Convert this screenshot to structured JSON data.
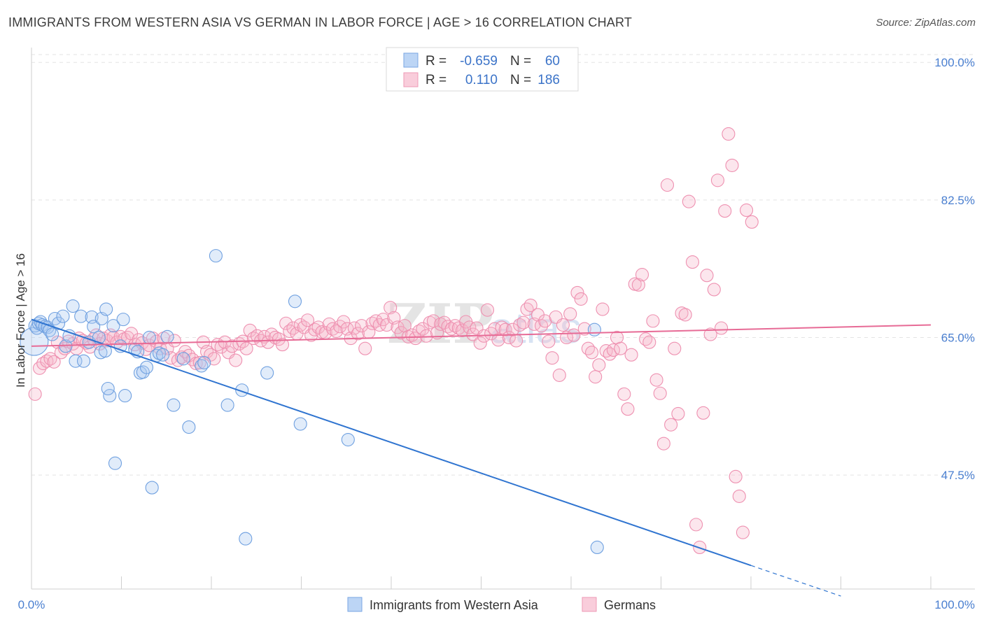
{
  "header": {
    "title": "IMMIGRANTS FROM WESTERN ASIA VS GERMAN IN LABOR FORCE | AGE > 16 CORRELATION CHART",
    "source": "Source: ZipAtlas.com"
  },
  "legend": {
    "rows": [
      {
        "r_label": "R =",
        "r_value": "-0.659",
        "n_label": "N =",
        "n_value": "60",
        "color": "#a8c8f0"
      },
      {
        "r_label": "R =",
        "r_value": "0.110",
        "n_label": "N =",
        "n_value": "186",
        "color": "#f5b8cc"
      }
    ]
  },
  "bottom_legend": {
    "series1": "Immigrants from Western Asia",
    "series2": "Germans"
  },
  "watermark": {
    "zip": "ZIP",
    "atlas": "atlas"
  },
  "colors": {
    "blue": "#6fa0e0",
    "blue_fill": "#a8c8f0",
    "blue_line": "#2f74d0",
    "pink": "#ee90b0",
    "pink_fill": "#f5b8cc",
    "pink_line": "#e76b96",
    "axis_label": "#4a7fd0"
  },
  "chart_data": {
    "type": "scatter",
    "title": "IMMIGRANTS FROM WESTERN ASIA VS GERMAN IN LABOR FORCE | AGE > 16 CORRELATION CHART",
    "xlabel": "",
    "ylabel": "In Labor Force | Age > 16",
    "xlim": [
      0,
      100
    ],
    "ylim": [
      33,
      101
    ],
    "x_tick_labels": [
      "0.0%",
      "100.0%"
    ],
    "y_ticks": [
      47.5,
      65.0,
      82.5,
      100.0
    ],
    "y_tick_labels": [
      "47.5%",
      "65.0%",
      "82.5%",
      "100.0%"
    ],
    "grid": true,
    "series": [
      {
        "name": "Immigrants from Western Asia",
        "trend": {
          "x0": 0,
          "y0": 67.3,
          "x1": 80,
          "y1": 36.0,
          "dash_to_x": 90,
          "dash_to_y": 32.1
        },
        "points": [
          [
            0.3,
            64.5
          ],
          [
            0.4,
            66.5
          ],
          [
            0.6,
            66.2
          ],
          [
            0.8,
            66.8
          ],
          [
            1.0,
            67.0
          ],
          [
            1.2,
            66.6
          ],
          [
            1.5,
            66.4
          ],
          [
            1.8,
            66.3
          ],
          [
            2.0,
            65.9
          ],
          [
            2.3,
            65.4
          ],
          [
            2.6,
            67.4
          ],
          [
            3.0,
            66.8
          ],
          [
            3.5,
            67.7
          ],
          [
            3.8,
            63.9
          ],
          [
            4.2,
            65.2
          ],
          [
            4.6,
            69.0
          ],
          [
            4.9,
            62.0
          ],
          [
            5.5,
            67.7
          ],
          [
            5.8,
            62.0
          ],
          [
            6.4,
            64.4
          ],
          [
            6.7,
            67.6
          ],
          [
            6.9,
            66.4
          ],
          [
            7.5,
            65.0
          ],
          [
            7.8,
            67.4
          ],
          [
            7.7,
            63.1
          ],
          [
            8.2,
            63.3
          ],
          [
            8.3,
            68.6
          ],
          [
            8.7,
            57.6
          ],
          [
            9.1,
            66.5
          ],
          [
            9.9,
            63.9
          ],
          [
            10.2,
            67.3
          ],
          [
            10.4,
            57.6
          ],
          [
            11.5,
            63.5
          ],
          [
            11.8,
            63.2
          ],
          [
            12.1,
            60.5
          ],
          [
            12.4,
            60.6
          ],
          [
            12.8,
            61.2
          ],
          [
            13.1,
            65.0
          ],
          [
            13.4,
            45.9
          ],
          [
            13.9,
            62.7
          ],
          [
            14.2,
            63.0
          ],
          [
            14.6,
            62.8
          ],
          [
            15.1,
            65.1
          ],
          [
            15.8,
            56.4
          ],
          [
            16.9,
            62.3
          ],
          [
            17.5,
            53.6
          ],
          [
            18.9,
            61.4
          ],
          [
            19.2,
            61.8
          ],
          [
            20.5,
            75.4
          ],
          [
            21.8,
            56.4
          ],
          [
            23.4,
            58.3
          ],
          [
            23.8,
            39.4
          ],
          [
            26.2,
            60.5
          ],
          [
            29.3,
            69.6
          ],
          [
            29.9,
            54.0
          ],
          [
            35.2,
            52.0
          ],
          [
            62.6,
            66.0
          ],
          [
            62.9,
            38.3
          ],
          [
            9.3,
            49.0
          ],
          [
            8.5,
            58.5
          ]
        ]
      },
      {
        "name": "Germans",
        "trend": {
          "x0": 0,
          "y0": 63.9,
          "x1": 100,
          "y1": 66.6
        },
        "points": [
          [
            0.4,
            57.8
          ],
          [
            0.9,
            61.1
          ],
          [
            1.3,
            61.7
          ],
          [
            1.7,
            62.0
          ],
          [
            2.1,
            62.3
          ],
          [
            2.5,
            61.9
          ],
          [
            2.9,
            64.4
          ],
          [
            3.3,
            63.1
          ],
          [
            3.7,
            63.6
          ],
          [
            4.1,
            64.5
          ],
          [
            4.6,
            64.2
          ],
          [
            5.0,
            63.6
          ],
          [
            5.3,
            64.9
          ],
          [
            5.7,
            64.6
          ],
          [
            6.1,
            64.3
          ],
          [
            6.5,
            63.8
          ],
          [
            6.9,
            64.8
          ],
          [
            7.2,
            65.3
          ],
          [
            7.6,
            64.2
          ],
          [
            8.0,
            64.9
          ],
          [
            8.4,
            64.6
          ],
          [
            8.8,
            65.3
          ],
          [
            9.1,
            65.0
          ],
          [
            9.5,
            64.4
          ],
          [
            9.9,
            65.1
          ],
          [
            10.3,
            64.8
          ],
          [
            10.7,
            65.0
          ],
          [
            11.1,
            65.5
          ],
          [
            11.5,
            64.1
          ],
          [
            11.9,
            64.7
          ],
          [
            12.3,
            64.3
          ],
          [
            12.7,
            63.5
          ],
          [
            13.1,
            64.0
          ],
          [
            13.5,
            64.9
          ],
          [
            13.9,
            64.5
          ],
          [
            14.3,
            63.6
          ],
          [
            14.7,
            64.9
          ],
          [
            15.1,
            63.6
          ],
          [
            15.5,
            62.4
          ],
          [
            15.9,
            64.6
          ],
          [
            16.3,
            62.1
          ],
          [
            16.7,
            62.5
          ],
          [
            17.1,
            63.2
          ],
          [
            17.5,
            62.7
          ],
          [
            17.9,
            62.2
          ],
          [
            18.3,
            61.7
          ],
          [
            18.7,
            61.8
          ],
          [
            19.1,
            64.4
          ],
          [
            19.5,
            63.2
          ],
          [
            19.9,
            62.8
          ],
          [
            20.3,
            62.3
          ],
          [
            20.7,
            64.1
          ],
          [
            21.1,
            63.8
          ],
          [
            21.5,
            64.4
          ],
          [
            21.9,
            63.1
          ],
          [
            22.3,
            63.9
          ],
          [
            22.7,
            62.1
          ],
          [
            23.1,
            64.2
          ],
          [
            23.5,
            64.5
          ],
          [
            23.9,
            63.6
          ],
          [
            24.3,
            65.9
          ],
          [
            24.7,
            64.9
          ],
          [
            25.1,
            65.2
          ],
          [
            25.5,
            64.6
          ],
          [
            25.9,
            65.1
          ],
          [
            26.3,
            64.4
          ],
          [
            26.7,
            65.4
          ],
          [
            27.1,
            65.0
          ],
          [
            27.5,
            64.8
          ],
          [
            27.9,
            64.1
          ],
          [
            28.3,
            66.8
          ],
          [
            28.7,
            65.8
          ],
          [
            29.1,
            66.2
          ],
          [
            29.5,
            65.5
          ],
          [
            29.9,
            66.6
          ],
          [
            30.3,
            66.3
          ],
          [
            30.7,
            67.2
          ],
          [
            31.1,
            65.3
          ],
          [
            31.5,
            66.0
          ],
          [
            31.9,
            66.3
          ],
          [
            32.3,
            65.7
          ],
          [
            32.7,
            65.6
          ],
          [
            33.1,
            66.7
          ],
          [
            33.5,
            66.1
          ],
          [
            33.9,
            65.8
          ],
          [
            34.3,
            66.4
          ],
          [
            34.7,
            67.0
          ],
          [
            35.1,
            66.1
          ],
          [
            35.5,
            64.9
          ],
          [
            35.9,
            66.2
          ],
          [
            36.3,
            65.5
          ],
          [
            36.7,
            66.5
          ],
          [
            37.1,
            63.6
          ],
          [
            37.5,
            65.7
          ],
          [
            37.9,
            66.8
          ],
          [
            38.3,
            67.1
          ],
          [
            38.7,
            66.6
          ],
          [
            39.1,
            67.3
          ],
          [
            39.5,
            66.6
          ],
          [
            39.9,
            68.8
          ],
          [
            40.3,
            67.5
          ],
          [
            40.7,
            66.3
          ],
          [
            41.1,
            65.6
          ],
          [
            41.5,
            66.5
          ],
          [
            41.9,
            65.1
          ],
          [
            42.3,
            65.3
          ],
          [
            42.7,
            64.9
          ],
          [
            43.1,
            65.8
          ],
          [
            43.5,
            66.1
          ],
          [
            43.9,
            65.2
          ],
          [
            44.3,
            66.9
          ],
          [
            44.7,
            67.1
          ],
          [
            45.1,
            65.6
          ],
          [
            45.5,
            66.7
          ],
          [
            45.9,
            66.9
          ],
          [
            46.3,
            66.4
          ],
          [
            46.7,
            66.1
          ],
          [
            47.1,
            66.5
          ],
          [
            47.5,
            66.2
          ],
          [
            47.9,
            65.9
          ],
          [
            48.3,
            67.0
          ],
          [
            48.7,
            66.3
          ],
          [
            49.1,
            65.4
          ],
          [
            49.5,
            66.2
          ],
          [
            49.9,
            64.3
          ],
          [
            50.3,
            65.2
          ],
          [
            50.7,
            68.5
          ],
          [
            51.1,
            65.5
          ],
          [
            51.5,
            66.1
          ],
          [
            51.9,
            64.7
          ],
          [
            52.3,
            66.3
          ],
          [
            52.7,
            66.0
          ],
          [
            53.1,
            65.0
          ],
          [
            53.5,
            66.0
          ],
          [
            53.9,
            64.6
          ],
          [
            54.3,
            66.6
          ],
          [
            54.7,
            66.9
          ],
          [
            55.1,
            68.6
          ],
          [
            55.5,
            69.1
          ],
          [
            55.9,
            66.7
          ],
          [
            56.3,
            67.9
          ],
          [
            56.7,
            66.5
          ],
          [
            57.1,
            67.1
          ],
          [
            57.5,
            64.5
          ],
          [
            57.9,
            62.4
          ],
          [
            58.3,
            67.6
          ],
          [
            58.7,
            60.2
          ],
          [
            59.1,
            66.6
          ],
          [
            59.5,
            65.0
          ],
          [
            59.9,
            68.0
          ],
          [
            60.3,
            65.3
          ],
          [
            60.7,
            70.7
          ],
          [
            61.1,
            69.9
          ],
          [
            61.5,
            66.1
          ],
          [
            61.9,
            63.6
          ],
          [
            62.3,
            63.1
          ],
          [
            62.7,
            60.0
          ],
          [
            63.1,
            61.5
          ],
          [
            63.5,
            68.6
          ],
          [
            63.9,
            63.3
          ],
          [
            64.3,
            62.9
          ],
          [
            64.7,
            63.4
          ],
          [
            65.1,
            65.0
          ],
          [
            65.5,
            63.6
          ],
          [
            65.9,
            57.8
          ],
          [
            66.3,
            55.9
          ],
          [
            66.7,
            62.8
          ],
          [
            67.1,
            71.8
          ],
          [
            67.5,
            71.7
          ],
          [
            67.9,
            73.0
          ],
          [
            68.3,
            64.8
          ],
          [
            68.7,
            64.4
          ],
          [
            69.1,
            67.1
          ],
          [
            69.5,
            59.6
          ],
          [
            69.9,
            57.9
          ],
          [
            70.3,
            51.5
          ],
          [
            70.7,
            84.4
          ],
          [
            71.1,
            53.9
          ],
          [
            71.5,
            63.6
          ],
          [
            71.9,
            55.3
          ],
          [
            72.3,
            68.1
          ],
          [
            72.7,
            67.9
          ],
          [
            73.1,
            82.3
          ],
          [
            73.5,
            74.6
          ],
          [
            73.9,
            41.2
          ],
          [
            74.3,
            38.3
          ],
          [
            74.7,
            55.4
          ],
          [
            75.1,
            72.9
          ],
          [
            75.5,
            65.4
          ],
          [
            75.9,
            71.1
          ],
          [
            76.3,
            85.0
          ],
          [
            76.7,
            66.2
          ],
          [
            77.1,
            81.1
          ],
          [
            77.5,
            90.9
          ],
          [
            77.9,
            86.9
          ],
          [
            78.3,
            47.3
          ],
          [
            78.7,
            44.8
          ],
          [
            79.1,
            40.2
          ],
          [
            79.5,
            81.2
          ],
          [
            80.1,
            79.7
          ]
        ]
      }
    ]
  }
}
